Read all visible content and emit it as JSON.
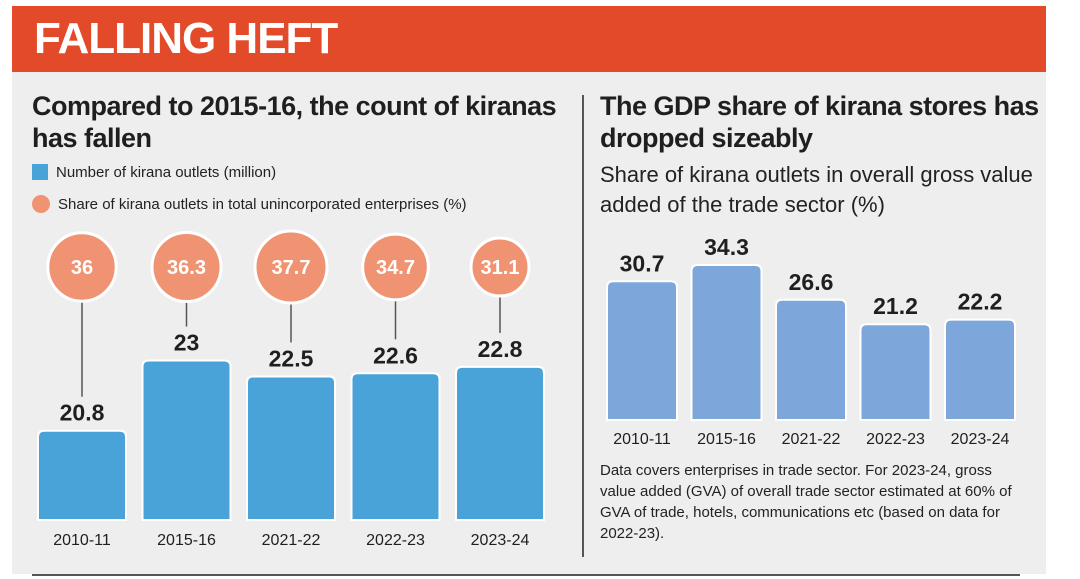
{
  "banner": {
    "title": "FALLING HEFT"
  },
  "left_panel": {
    "title": "Compared to 2015-16, the count of kiranas has fallen",
    "legend": [
      {
        "label": "Number of kirana outlets (million)",
        "color": "#4aa3d8",
        "shape": "square"
      },
      {
        "label": "Share of kirana outlets in total unincorporated enterprises (%)",
        "color": "#ef9373",
        "shape": "circle"
      }
    ]
  },
  "right_panel": {
    "title": "The GDP share of kirana stores has dropped sizeably",
    "subtitle": "Share of kirana outlets in overall gross value added of the trade sector (%)",
    "note": "Data covers enterprises in trade sector. For 2023-24, gross value added (GVA) of overall trade sector estimated at 60% of GVA of trade, hotels, communications etc (based on data for 2022-23)."
  },
  "chart_data": [
    {
      "type": "bar",
      "title": "Compared to 2015-16, the count of kiranas has fallen",
      "categories": [
        "2010-11",
        "2015-16",
        "2021-22",
        "2022-23",
        "2023-24"
      ],
      "series": [
        {
          "name": "Number of kirana outlets (million)",
          "values": [
            20.8,
            23,
            22.5,
            22.6,
            22.8
          ],
          "color": "#4aa3d8",
          "display": "bar"
        },
        {
          "name": "Share of kirana outlets in total unincorporated enterprises (%)",
          "values": [
            36,
            36.3,
            37.7,
            34.7,
            31.1
          ],
          "color": "#ef9373",
          "display": "bubble"
        }
      ],
      "value_labels": [
        "20.8",
        "23",
        "22.5",
        "22.6",
        "22.8"
      ],
      "bubble_labels": [
        "36",
        "36.3",
        "37.7",
        "34.7",
        "31.1"
      ],
      "xlabel": "",
      "ylabel": "",
      "ylim": [
        18,
        23.8
      ],
      "grid": false,
      "legend_position": "top-left"
    },
    {
      "type": "bar",
      "title": "The GDP share of kirana stores has dropped sizeably",
      "categories": [
        "2010-11",
        "2015-16",
        "2021-22",
        "2022-23",
        "2023-24"
      ],
      "series": [
        {
          "name": "Share of kirana outlets in overall gross value added of the trade sector (%)",
          "values": [
            30.7,
            34.3,
            26.6,
            21.2,
            22.2
          ],
          "color": "#7da7da"
        }
      ],
      "value_labels": [
        "30.7",
        "34.3",
        "26.6",
        "21.2",
        "22.2"
      ],
      "xlabel": "",
      "ylabel": "",
      "ylim": [
        0,
        40
      ],
      "grid": false
    }
  ]
}
